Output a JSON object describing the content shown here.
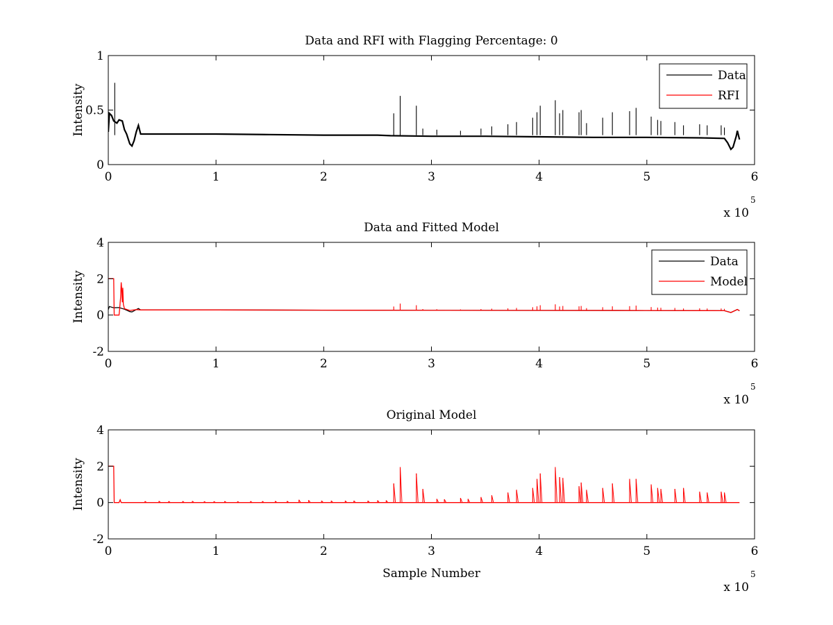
{
  "figure": {
    "background": "#ffffff"
  },
  "chart_data": [
    {
      "type": "line",
      "title": "Data and RFI with Flagging Percentage: 0",
      "xlabel": "",
      "ylabel": "Intensity",
      "xlim": [
        0,
        6
      ],
      "ylim": [
        0,
        1
      ],
      "x_multiplier": {
        "text": "x 10",
        "exponent": "5"
      },
      "xticks": [
        "0",
        "1",
        "2",
        "3",
        "4",
        "5",
        "6"
      ],
      "yticks": [
        "0",
        "0.5",
        "1"
      ],
      "ytick_values": [
        0,
        0.5,
        1
      ],
      "legend": {
        "position": "top-right",
        "entries": [
          {
            "label": "Data",
            "color": "#000000"
          },
          {
            "label": "RFI",
            "color": "#ff0000"
          }
        ]
      },
      "series": [
        {
          "name": "Data",
          "color": "#000000",
          "baseline": 0.27,
          "points": [
            [
              0.0,
              0.3
            ],
            [
              0.01,
              0.47
            ],
            [
              0.03,
              0.45
            ],
            [
              0.05,
              0.4
            ],
            [
              0.08,
              0.38
            ],
            [
              0.1,
              0.41
            ],
            [
              0.13,
              0.4
            ],
            [
              0.15,
              0.32
            ],
            [
              0.17,
              0.28
            ],
            [
              0.2,
              0.19
            ],
            [
              0.22,
              0.17
            ],
            [
              0.24,
              0.22
            ],
            [
              0.26,
              0.3
            ],
            [
              0.28,
              0.36
            ],
            [
              0.3,
              0.28
            ],
            [
              0.5,
              0.28
            ],
            [
              1.0,
              0.28
            ],
            [
              1.5,
              0.275
            ],
            [
              2.0,
              0.27
            ],
            [
              2.5,
              0.27
            ],
            [
              2.62,
              0.265
            ],
            [
              3.0,
              0.26
            ],
            [
              3.5,
              0.26
            ],
            [
              4.0,
              0.255
            ],
            [
              4.5,
              0.25
            ],
            [
              5.0,
              0.25
            ],
            [
              5.5,
              0.245
            ],
            [
              5.72,
              0.24
            ],
            [
              5.75,
              0.2
            ],
            [
              5.78,
              0.14
            ],
            [
              5.8,
              0.16
            ],
            [
              5.83,
              0.26
            ],
            [
              5.84,
              0.31
            ],
            [
              5.86,
              0.23
            ]
          ],
          "spikes": [
            [
              0.06,
              0.75
            ],
            [
              2.65,
              0.47
            ],
            [
              2.71,
              0.63
            ],
            [
              2.86,
              0.54
            ],
            [
              2.92,
              0.33
            ],
            [
              3.05,
              0.32
            ],
            [
              3.27,
              0.31
            ],
            [
              3.46,
              0.33
            ],
            [
              3.56,
              0.35
            ],
            [
              3.71,
              0.37
            ],
            [
              3.79,
              0.39
            ],
            [
              3.94,
              0.43
            ],
            [
              3.98,
              0.48
            ],
            [
              4.01,
              0.54
            ],
            [
              4.15,
              0.59
            ],
            [
              4.19,
              0.47
            ],
            [
              4.22,
              0.5
            ],
            [
              4.37,
              0.48
            ],
            [
              4.39,
              0.5
            ],
            [
              4.44,
              0.38
            ],
            [
              4.59,
              0.43
            ],
            [
              4.68,
              0.48
            ],
            [
              4.84,
              0.49
            ],
            [
              4.9,
              0.52
            ],
            [
              5.04,
              0.44
            ],
            [
              5.1,
              0.41
            ],
            [
              5.13,
              0.4
            ],
            [
              5.26,
              0.39
            ],
            [
              5.34,
              0.36
            ],
            [
              5.49,
              0.37
            ],
            [
              5.56,
              0.36
            ],
            [
              5.69,
              0.36
            ],
            [
              5.72,
              0.34
            ]
          ]
        },
        {
          "name": "RFI",
          "color": "#ff0000",
          "points": []
        }
      ]
    },
    {
      "type": "line",
      "title": "Data and Fitted Model",
      "xlabel": "",
      "ylabel": "Intensity",
      "xlim": [
        0,
        6
      ],
      "ylim": [
        -2,
        4
      ],
      "x_multiplier": {
        "text": "x 10",
        "exponent": "5"
      },
      "xticks": [
        "0",
        "1",
        "2",
        "3",
        "4",
        "5",
        "6"
      ],
      "yticks": [
        "-2",
        "0",
        "2",
        "4"
      ],
      "ytick_values": [
        -2,
        0,
        2,
        4
      ],
      "legend": {
        "position": "top-right",
        "entries": [
          {
            "label": "Data",
            "color": "#000000"
          },
          {
            "label": "Model",
            "color": "#ff0000"
          }
        ]
      },
      "series": [
        {
          "name": "Data",
          "color": "#000000",
          "baseline": 0.27,
          "points": [
            [
              0.0,
              0.3
            ],
            [
              0.01,
              0.47
            ],
            [
              0.05,
              0.4
            ],
            [
              0.1,
              0.41
            ],
            [
              0.15,
              0.32
            ],
            [
              0.2,
              0.19
            ],
            [
              0.22,
              0.17
            ],
            [
              0.26,
              0.3
            ],
            [
              0.28,
              0.36
            ],
            [
              0.3,
              0.28
            ],
            [
              1.0,
              0.28
            ],
            [
              2.0,
              0.27
            ],
            [
              3.0,
              0.26
            ],
            [
              4.0,
              0.255
            ],
            [
              5.0,
              0.25
            ],
            [
              5.72,
              0.24
            ],
            [
              5.78,
              0.14
            ],
            [
              5.84,
              0.31
            ],
            [
              5.86,
              0.23
            ]
          ],
          "spikes": []
        },
        {
          "name": "Model",
          "color": "#ff0000",
          "baseline": 0.27,
          "points": [
            [
              0.0,
              2.0
            ],
            [
              0.05,
              2.0
            ],
            [
              0.055,
              0.0
            ],
            [
              0.1,
              0.0
            ],
            [
              0.105,
              0.3
            ],
            [
              0.11,
              0.7
            ],
            [
              0.115,
              1.0
            ],
            [
              0.12,
              1.8
            ],
            [
              0.125,
              1.4
            ],
            [
              0.13,
              0.7
            ],
            [
              0.135,
              1.5
            ],
            [
              0.14,
              0.6
            ],
            [
              0.15,
              0.35
            ],
            [
              0.2,
              0.25
            ],
            [
              0.26,
              0.3
            ],
            [
              0.3,
              0.28
            ],
            [
              1.0,
              0.28
            ],
            [
              2.0,
              0.27
            ],
            [
              3.0,
              0.26
            ],
            [
              4.0,
              0.255
            ],
            [
              5.0,
              0.25
            ],
            [
              5.72,
              0.24
            ],
            [
              5.78,
              0.14
            ],
            [
              5.84,
              0.31
            ],
            [
              5.86,
              0.23
            ]
          ],
          "spikes": [
            [
              2.65,
              0.47
            ],
            [
              2.71,
              0.63
            ],
            [
              2.86,
              0.54
            ],
            [
              2.92,
              0.33
            ],
            [
              3.05,
              0.32
            ],
            [
              3.27,
              0.31
            ],
            [
              3.46,
              0.33
            ],
            [
              3.56,
              0.35
            ],
            [
              3.71,
              0.37
            ],
            [
              3.79,
              0.39
            ],
            [
              3.94,
              0.43
            ],
            [
              3.98,
              0.48
            ],
            [
              4.01,
              0.54
            ],
            [
              4.15,
              0.59
            ],
            [
              4.19,
              0.47
            ],
            [
              4.22,
              0.5
            ],
            [
              4.37,
              0.48
            ],
            [
              4.39,
              0.5
            ],
            [
              4.44,
              0.38
            ],
            [
              4.59,
              0.43
            ],
            [
              4.68,
              0.48
            ],
            [
              4.84,
              0.49
            ],
            [
              4.9,
              0.52
            ],
            [
              5.04,
              0.44
            ],
            [
              5.1,
              0.41
            ],
            [
              5.13,
              0.4
            ],
            [
              5.26,
              0.39
            ],
            [
              5.34,
              0.36
            ],
            [
              5.49,
              0.37
            ],
            [
              5.56,
              0.36
            ],
            [
              5.69,
              0.36
            ],
            [
              5.72,
              0.34
            ]
          ]
        }
      ]
    },
    {
      "type": "line",
      "title": "Original Model",
      "xlabel": "Sample Number",
      "ylabel": "Intensity",
      "xlim": [
        0,
        6
      ],
      "ylim": [
        -2,
        4
      ],
      "x_multiplier": {
        "text": "x 10",
        "exponent": "5"
      },
      "xticks": [
        "0",
        "1",
        "2",
        "3",
        "4",
        "5",
        "6"
      ],
      "yticks": [
        "-2",
        "0",
        "2",
        "4"
      ],
      "ytick_values": [
        -2,
        0,
        2,
        4
      ],
      "legend": null,
      "series": [
        {
          "name": "",
          "color": "#ff0000",
          "baseline": 0.0,
          "points": [
            [
              0.0,
              2.0
            ],
            [
              0.05,
              2.0
            ],
            [
              0.055,
              0.0
            ],
            [
              0.1,
              0.0
            ],
            [
              0.11,
              0.15
            ],
            [
              0.12,
              0.0
            ],
            [
              5.86,
              0.0
            ]
          ],
          "spikes": [
            [
              0.34,
              0.07
            ],
            [
              0.47,
              0.08
            ],
            [
              0.56,
              0.07
            ],
            [
              0.69,
              0.07
            ],
            [
              0.78,
              0.08
            ],
            [
              0.89,
              0.06
            ],
            [
              0.98,
              0.06
            ],
            [
              1.08,
              0.07
            ],
            [
              1.2,
              0.06
            ],
            [
              1.32,
              0.07
            ],
            [
              1.43,
              0.07
            ],
            [
              1.55,
              0.08
            ],
            [
              1.66,
              0.08
            ],
            [
              1.77,
              0.15
            ],
            [
              1.86,
              0.13
            ],
            [
              1.98,
              0.1
            ],
            [
              2.07,
              0.1
            ],
            [
              2.2,
              0.1
            ],
            [
              2.28,
              0.1
            ],
            [
              2.41,
              0.1
            ],
            [
              2.5,
              0.12
            ],
            [
              2.58,
              0.12
            ],
            [
              2.65,
              1.05
            ],
            [
              2.71,
              1.95
            ],
            [
              2.86,
              1.6
            ],
            [
              2.92,
              0.75
            ],
            [
              3.05,
              0.2
            ],
            [
              3.12,
              0.18
            ],
            [
              3.27,
              0.25
            ],
            [
              3.34,
              0.2
            ],
            [
              3.46,
              0.3
            ],
            [
              3.56,
              0.4
            ],
            [
              3.71,
              0.55
            ],
            [
              3.79,
              0.7
            ],
            [
              3.94,
              0.8
            ],
            [
              3.98,
              1.3
            ],
            [
              4.01,
              1.6
            ],
            [
              4.15,
              1.95
            ],
            [
              4.19,
              1.4
            ],
            [
              4.22,
              1.35
            ],
            [
              4.37,
              0.9
            ],
            [
              4.39,
              1.1
            ],
            [
              4.44,
              0.7
            ],
            [
              4.59,
              0.8
            ],
            [
              4.68,
              1.05
            ],
            [
              4.84,
              1.3
            ],
            [
              4.9,
              1.3
            ],
            [
              5.04,
              1.0
            ],
            [
              5.1,
              0.8
            ],
            [
              5.13,
              0.75
            ],
            [
              5.26,
              0.75
            ],
            [
              5.34,
              0.8
            ],
            [
              5.49,
              0.6
            ],
            [
              5.56,
              0.55
            ],
            [
              5.69,
              0.6
            ],
            [
              5.72,
              0.55
            ]
          ]
        }
      ]
    }
  ]
}
